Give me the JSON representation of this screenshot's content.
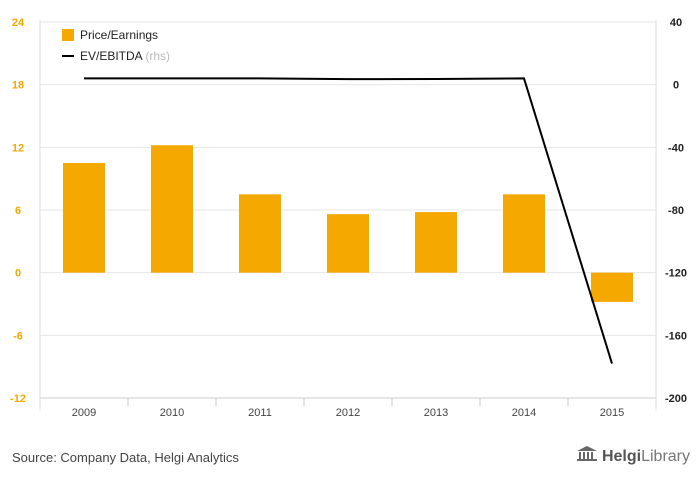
{
  "chart_data": {
    "type": "bar",
    "categories": [
      "2009",
      "2010",
      "2011",
      "2012",
      "2013",
      "2014",
      "2015"
    ],
    "series": [
      {
        "name": "Price/Earnings",
        "type": "bar",
        "axis": "left",
        "color": "#f5a800",
        "values": [
          10.5,
          12.2,
          7.5,
          5.6,
          5.8,
          7.5,
          -2.8
        ]
      },
      {
        "name": "EV/EBITDA",
        "type": "line",
        "axis": "right",
        "color": "#000000",
        "values": [
          4.0,
          4.0,
          4.0,
          3.5,
          3.6,
          4.0,
          -178.0
        ]
      }
    ],
    "left_axis": {
      "ylim": [
        -12,
        24
      ],
      "ticks": [
        "24",
        "18",
        "12",
        "6",
        "0",
        "-6",
        "-12"
      ],
      "tick_color": "#f5a800"
    },
    "right_axis": {
      "ylim": [
        -200,
        40
      ],
      "ticks": [
        "40",
        "0",
        "-40",
        "-80",
        "-120",
        "-160",
        "-200"
      ]
    },
    "legend": {
      "placement": "top-left",
      "items": [
        {
          "label": "Price/Earnings",
          "note": ""
        },
        {
          "label": "EV/EBITDA",
          "note": "(rhs)"
        }
      ]
    },
    "grid": true
  },
  "footer": {
    "source": "Source: Company Data, Helgi Analytics",
    "logo_a": "Helgi",
    "logo_b": "Library"
  }
}
